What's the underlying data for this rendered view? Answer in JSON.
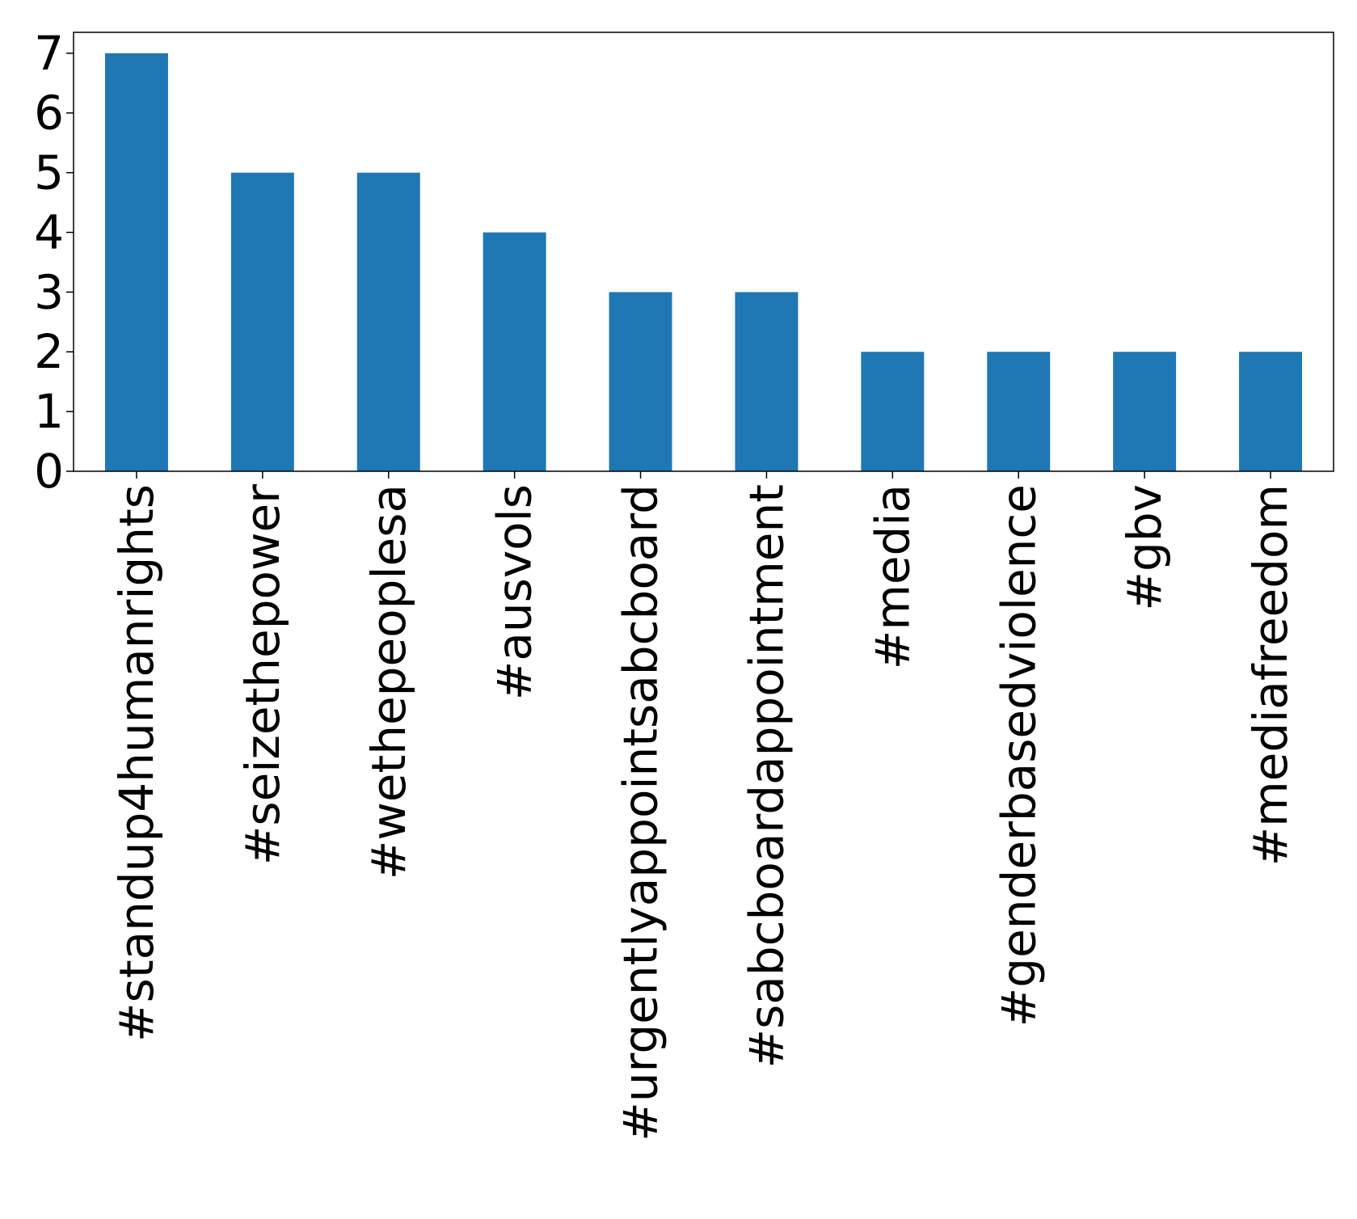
{
  "chart_data": {
    "type": "bar",
    "title": "",
    "xlabel": "",
    "ylabel": "",
    "categories": [
      "#standup4humanrights",
      "#seizethepower",
      "#wethepeoplesa",
      "#ausvols",
      "#urgentlyappointsabcboard",
      "#sabcboardappointment",
      "#media",
      "#genderbasedviolence",
      "#gbv",
      "#mediafreedom"
    ],
    "values": [
      7,
      5,
      5,
      4,
      3,
      3,
      2,
      2,
      2,
      2
    ],
    "ylim": [
      0,
      7.35
    ],
    "yticks": [
      0,
      1,
      2,
      3,
      4,
      5,
      6,
      7
    ],
    "bar_color": "#1f77b4",
    "grid": false,
    "legend": "none"
  }
}
